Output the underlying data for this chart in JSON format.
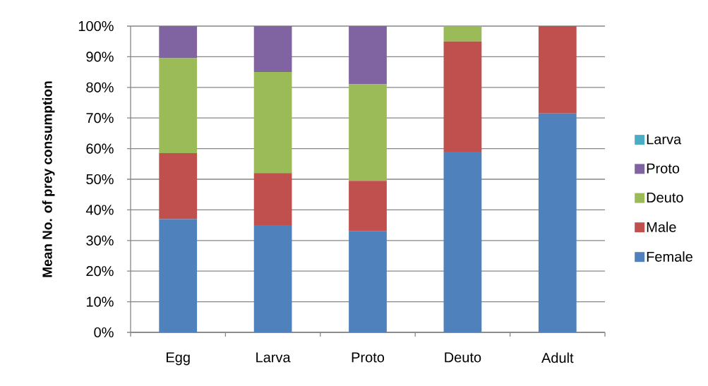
{
  "chart_data": {
    "type": "bar",
    "stacked": true,
    "ylabel": "Mean No. of prey consumption",
    "categories": [
      "Egg",
      "Larva",
      "Proto",
      "Deuto",
      "Adult"
    ],
    "series": [
      {
        "name": "Female",
        "color": "#4f81bd",
        "values": [
          37,
          35,
          33,
          59,
          71.5
        ]
      },
      {
        "name": "Male",
        "color": "#c0504d",
        "values": [
          21.5,
          17,
          16.5,
          36,
          28.5
        ]
      },
      {
        "name": "Deuto",
        "color": "#9bbb59",
        "values": [
          31,
          33,
          31.5,
          5,
          0
        ]
      },
      {
        "name": "Proto",
        "color": "#8064a2",
        "values": [
          10.5,
          15,
          19,
          0,
          0
        ]
      },
      {
        "name": "Larva",
        "color": "#4bacc6",
        "values": [
          0,
          0,
          0,
          0,
          0
        ]
      }
    ],
    "ylim": [
      0,
      100
    ],
    "yticks": [
      {
        "value": 0,
        "label": "0%"
      },
      {
        "value": 10,
        "label": "10%"
      },
      {
        "value": 20,
        "label": "20%"
      },
      {
        "value": 30,
        "label": "30%"
      },
      {
        "value": 40,
        "label": "40%"
      },
      {
        "value": 50,
        "label": "50%"
      },
      {
        "value": 60,
        "label": "60%"
      },
      {
        "value": 70,
        "label": "70%"
      },
      {
        "value": 80,
        "label": "80%"
      },
      {
        "value": 90,
        "label": "90%"
      },
      {
        "value": 100,
        "label": "100%"
      }
    ],
    "grid": "y",
    "legend": "right"
  }
}
